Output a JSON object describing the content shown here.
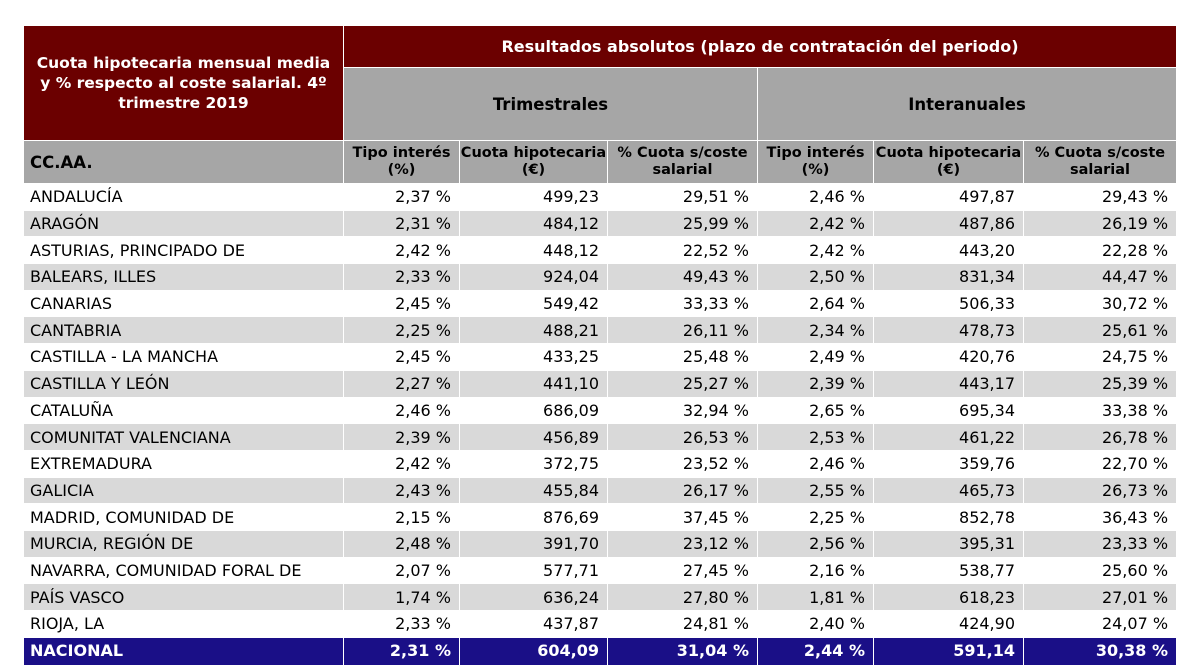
{
  "table": {
    "title": "Cuota hipotecaria mensual media y % respecto al coste salarial. 4º trimestre 2019",
    "results_header": "Resultados absolutos (plazo de contratación del periodo)",
    "group_quarterly": "Trimestrales",
    "group_annual": "Interanuales",
    "col_region": "CC.AA.",
    "col_rate": "Tipo interés (%)",
    "col_fee": "Cuota hipotecaria (€)",
    "col_pct": "% Cuota s/coste salarial",
    "rows": [
      {
        "region": "ANDALUCÍA",
        "q_rate": "2,37 %",
        "q_fee": "499,23",
        "q_pct": "29,51 %",
        "a_rate": "2,46 %",
        "a_fee": "497,87",
        "a_pct": "29,43 %"
      },
      {
        "region": "ARAGÓN",
        "q_rate": "2,31 %",
        "q_fee": "484,12",
        "q_pct": "25,99 %",
        "a_rate": "2,42 %",
        "a_fee": "487,86",
        "a_pct": "26,19 %"
      },
      {
        "region": "ASTURIAS, PRINCIPADO DE",
        "q_rate": "2,42 %",
        "q_fee": "448,12",
        "q_pct": "22,52 %",
        "a_rate": "2,42 %",
        "a_fee": "443,20",
        "a_pct": "22,28 %"
      },
      {
        "region": "BALEARS, ILLES",
        "q_rate": "2,33 %",
        "q_fee": "924,04",
        "q_pct": "49,43 %",
        "a_rate": "2,50 %",
        "a_fee": "831,34",
        "a_pct": "44,47 %"
      },
      {
        "region": "CANARIAS",
        "q_rate": "2,45 %",
        "q_fee": "549,42",
        "q_pct": "33,33 %",
        "a_rate": "2,64 %",
        "a_fee": "506,33",
        "a_pct": "30,72 %"
      },
      {
        "region": "CANTABRIA",
        "q_rate": "2,25 %",
        "q_fee": "488,21",
        "q_pct": "26,11 %",
        "a_rate": "2,34 %",
        "a_fee": "478,73",
        "a_pct": "25,61 %"
      },
      {
        "region": "CASTILLA - LA MANCHA",
        "q_rate": "2,45 %",
        "q_fee": "433,25",
        "q_pct": "25,48 %",
        "a_rate": "2,49 %",
        "a_fee": "420,76",
        "a_pct": "24,75 %"
      },
      {
        "region": "CASTILLA Y LEÓN",
        "q_rate": "2,27 %",
        "q_fee": "441,10",
        "q_pct": "25,27 %",
        "a_rate": "2,39 %",
        "a_fee": "443,17",
        "a_pct": "25,39 %"
      },
      {
        "region": "CATALUÑA",
        "q_rate": "2,46 %",
        "q_fee": "686,09",
        "q_pct": "32,94 %",
        "a_rate": "2,65 %",
        "a_fee": "695,34",
        "a_pct": "33,38 %"
      },
      {
        "region": "COMUNITAT VALENCIANA",
        "q_rate": "2,39 %",
        "q_fee": "456,89",
        "q_pct": "26,53 %",
        "a_rate": "2,53 %",
        "a_fee": "461,22",
        "a_pct": "26,78 %"
      },
      {
        "region": "EXTREMADURA",
        "q_rate": "2,42 %",
        "q_fee": "372,75",
        "q_pct": "23,52 %",
        "a_rate": "2,46 %",
        "a_fee": "359,76",
        "a_pct": "22,70 %"
      },
      {
        "region": "GALICIA",
        "q_rate": "2,43 %",
        "q_fee": "455,84",
        "q_pct": "26,17 %",
        "a_rate": "2,55 %",
        "a_fee": "465,73",
        "a_pct": "26,73 %"
      },
      {
        "region": "MADRID, COMUNIDAD DE",
        "q_rate": "2,15 %",
        "q_fee": "876,69",
        "q_pct": "37,45 %",
        "a_rate": "2,25 %",
        "a_fee": "852,78",
        "a_pct": "36,43 %"
      },
      {
        "region": "MURCIA, REGIÓN DE",
        "q_rate": "2,48 %",
        "q_fee": "391,70",
        "q_pct": "23,12 %",
        "a_rate": "2,56 %",
        "a_fee": "395,31",
        "a_pct": "23,33 %"
      },
      {
        "region": "NAVARRA, COMUNIDAD FORAL DE",
        "q_rate": "2,07 %",
        "q_fee": "577,71",
        "q_pct": "27,45 %",
        "a_rate": "2,16 %",
        "a_fee": "538,77",
        "a_pct": "25,60 %"
      },
      {
        "region": "PAÍS VASCO",
        "q_rate": "1,74 %",
        "q_fee": "636,24",
        "q_pct": "27,80 %",
        "a_rate": "1,81 %",
        "a_fee": "618,23",
        "a_pct": "27,01 %"
      },
      {
        "region": "RIOJA, LA",
        "q_rate": "2,33 %",
        "q_fee": "437,87",
        "q_pct": "24,81 %",
        "a_rate": "2,40 %",
        "a_fee": "424,90",
        "a_pct": "24,07 %"
      }
    ],
    "total": {
      "region": "NACIONAL",
      "q_rate": "2,31 %",
      "q_fee": "604,09",
      "q_pct": "31,04 %",
      "a_rate": "2,44 %",
      "a_fee": "591,14",
      "a_pct": "30,38 %"
    }
  }
}
